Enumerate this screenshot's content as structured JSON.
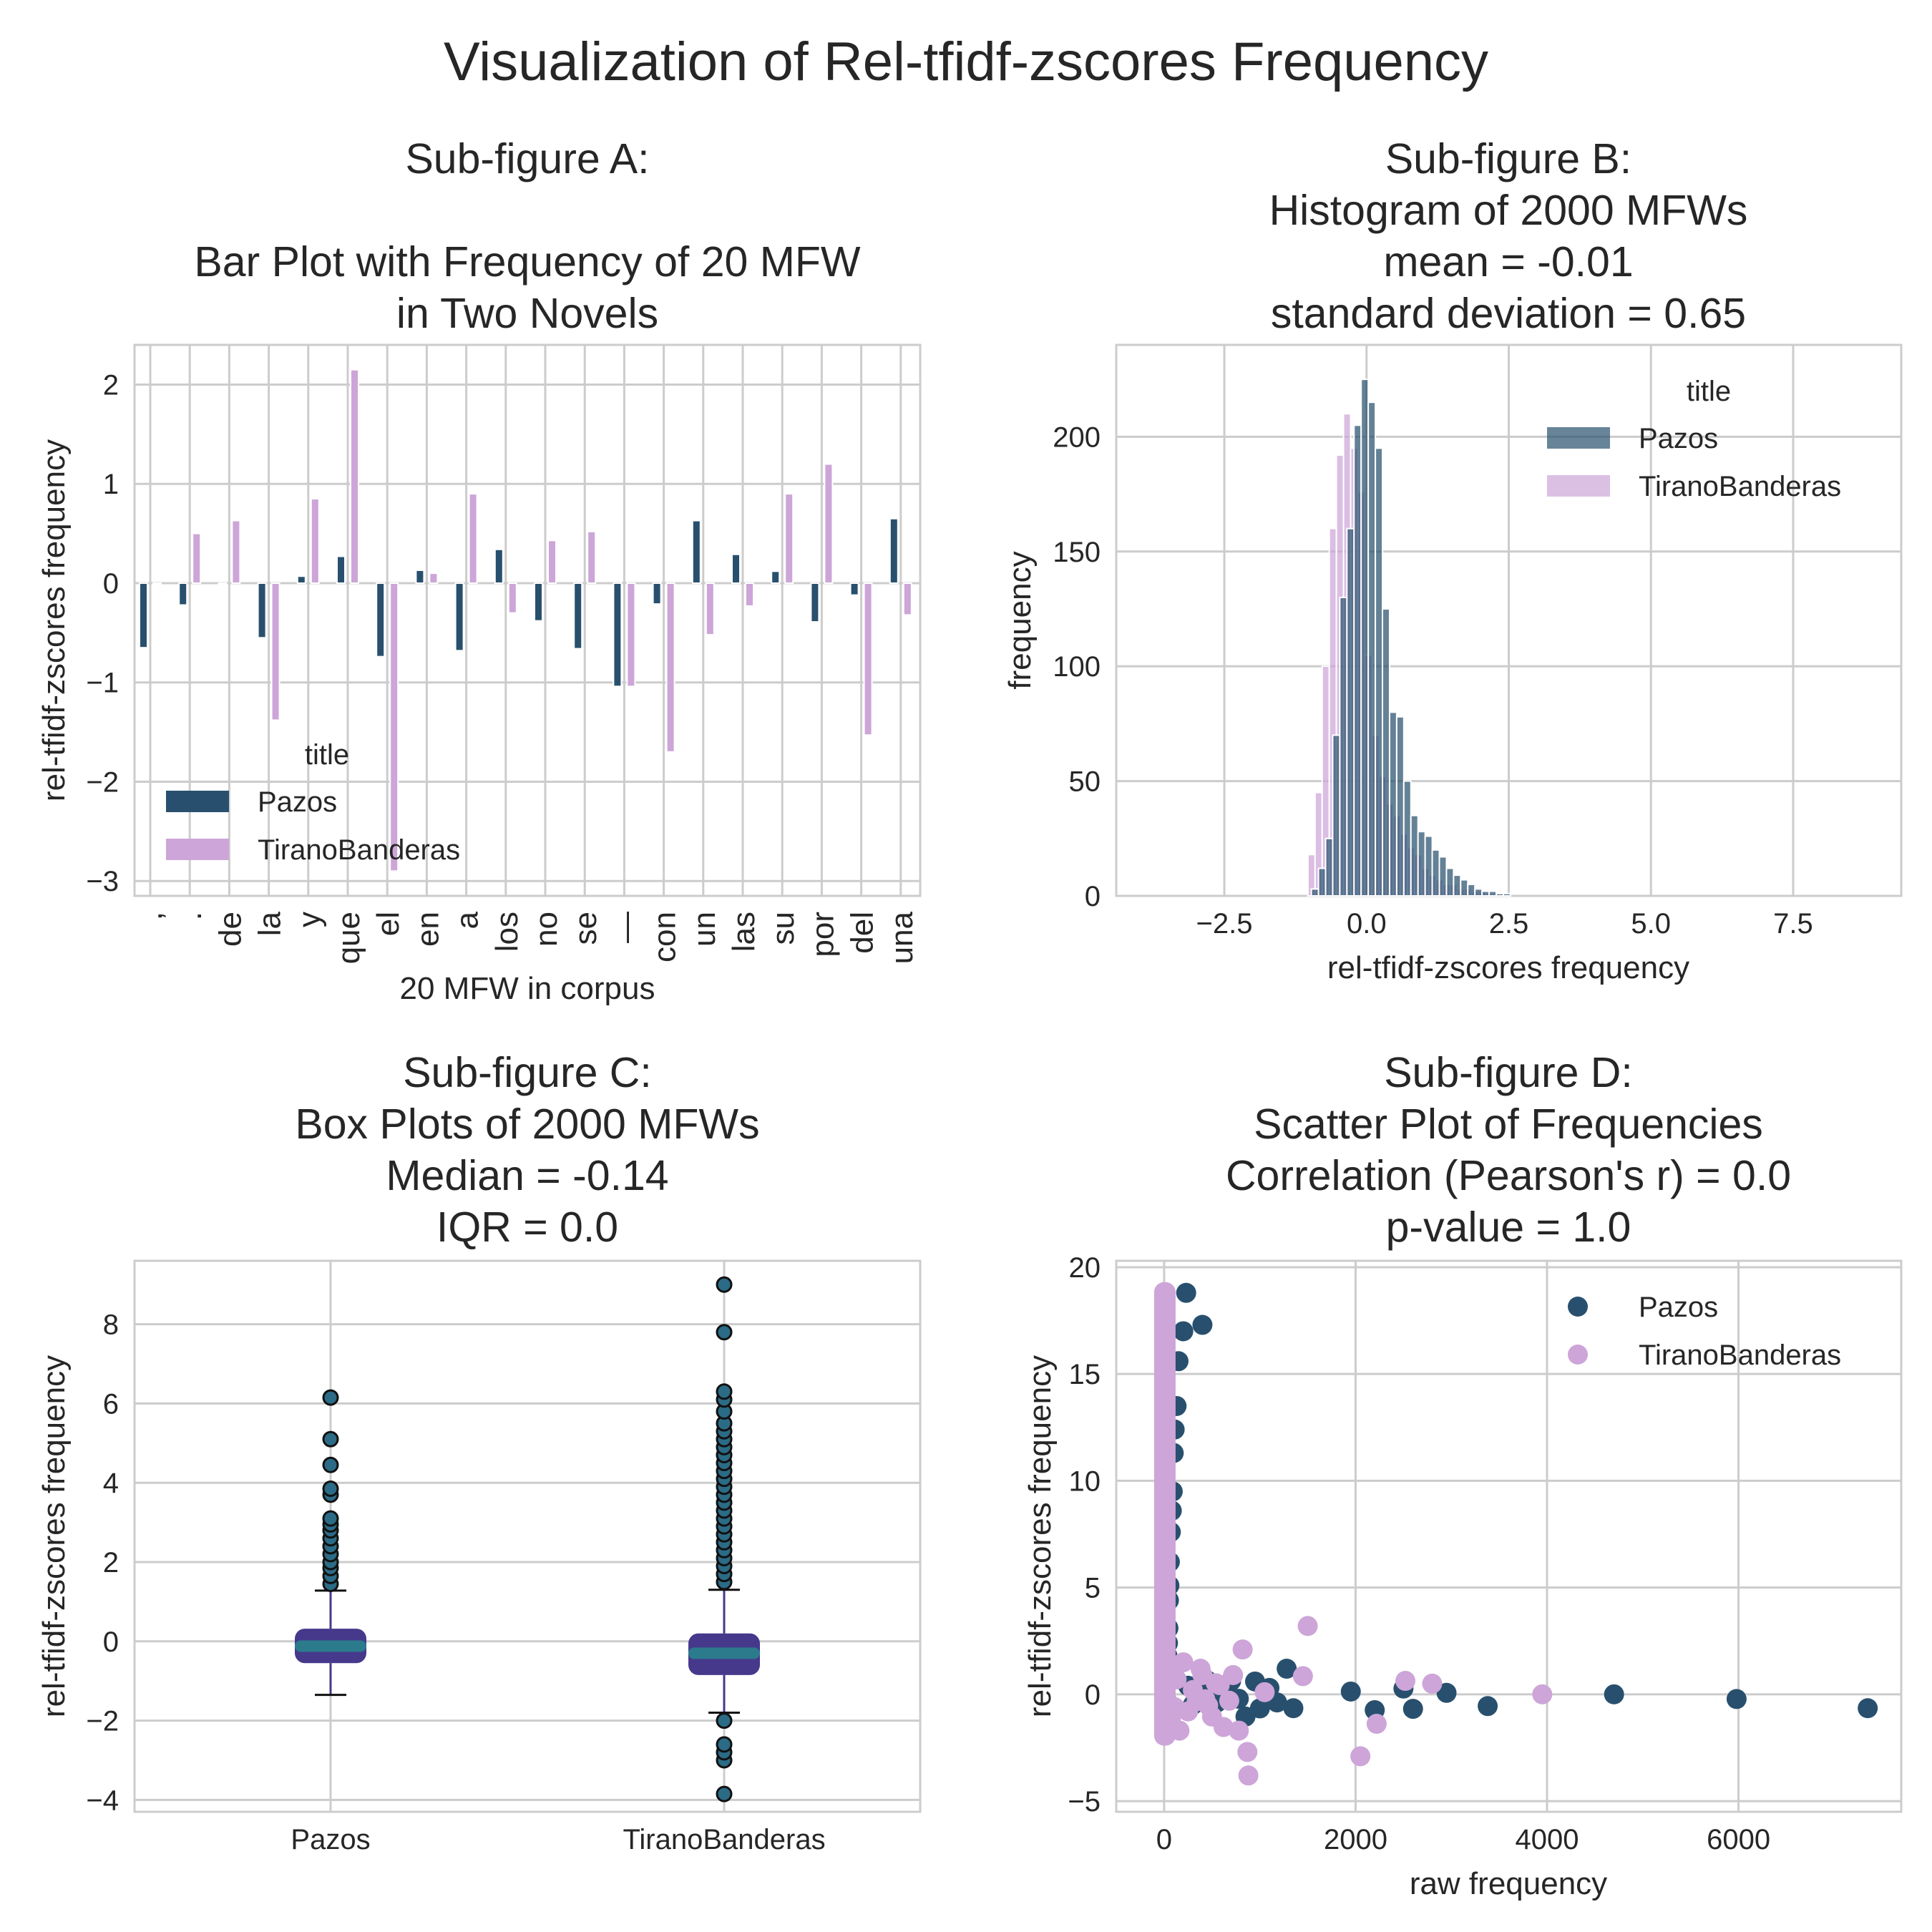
{
  "figure": {
    "title": "Visualization of Rel-tfidf-zscores Frequency"
  },
  "colors": {
    "pazos": "#28506e",
    "tirano": "#cda5d8",
    "box_fill": "#46398c",
    "box_median": "#2b7b8c",
    "flier_fill": "#2b6b86"
  },
  "chart_data": [
    {
      "panel": "A",
      "type": "bar",
      "title_lines": [
        "Sub-figure A:",
        "",
        "Bar Plot with Frequency of 20 MFW",
        "in Two Novels"
      ],
      "xlabel": "20 MFW in corpus",
      "ylabel": "rel-tfidf-zscores frequency",
      "ylim": [
        -3.15,
        2.4
      ],
      "yticks": [
        -3,
        -2,
        -1,
        0,
        1,
        2
      ],
      "ytick_labels": [
        "−3",
        "−2",
        "−1",
        "0",
        "1",
        "2"
      ],
      "categories": [
        ",",
        ".",
        "de",
        "la",
        "y",
        "que",
        "el",
        "en",
        "a",
        "los",
        "no",
        "se",
        "—",
        "con",
        "un",
        "las",
        "su",
        "por",
        "del",
        "una"
      ],
      "legend_title": "title",
      "legend_position": "lower-left",
      "series": [
        {
          "name": "Pazos",
          "values": [
            -0.65,
            -0.22,
            0.0,
            -0.55,
            0.07,
            0.27,
            -0.74,
            0.13,
            -0.68,
            0.34,
            -0.38,
            -0.66,
            -1.04,
            -0.21,
            0.63,
            0.29,
            0.12,
            -0.39,
            -0.12,
            0.65
          ]
        },
        {
          "name": "TiranoBanderas",
          "values": [
            0.0,
            0.5,
            0.63,
            -1.38,
            0.85,
            2.15,
            -2.9,
            0.1,
            0.9,
            -0.3,
            0.43,
            0.52,
            -1.04,
            -1.7,
            -0.52,
            -0.23,
            0.9,
            1.2,
            -1.53,
            -0.32
          ]
        }
      ]
    },
    {
      "panel": "B",
      "type": "histogram",
      "title_lines": [
        "Sub-figure B:",
        "Histogram of 2000 MFWs",
        "mean =  -0.01",
        "standard deviation = 0.65"
      ],
      "xlabel": "rel-tfidf-zscores frequency",
      "ylabel": "frequency",
      "xlim": [
        -4.4,
        9.4
      ],
      "ylim": [
        0,
        240
      ],
      "xticks": [
        -2.5,
        0.0,
        2.5,
        5.0,
        7.5
      ],
      "xtick_labels": [
        "−2.5",
        "0.0",
        "2.5",
        "5.0",
        "7.5"
      ],
      "yticks": [
        0,
        50,
        100,
        150,
        200
      ],
      "ytick_labels": [
        "0",
        "50",
        "100",
        "150",
        "200"
      ],
      "bin_start": -1.0,
      "bin_width": 0.125,
      "legend_title": "title",
      "legend_position": "top-right",
      "series": [
        {
          "name": "Pazos",
          "counts": [
            3,
            12,
            25,
            70,
            130,
            160,
            205,
            225,
            215,
            195,
            125,
            80,
            78,
            50,
            35,
            28,
            26,
            20,
            17,
            12,
            9,
            7,
            5,
            3,
            2,
            2,
            1,
            1
          ]
        },
        {
          "name": "TiranoBanderas",
          "counts": [
            18,
            45,
            100,
            160,
            192,
            210,
            195,
            176,
            105,
            70,
            52,
            40,
            35,
            27,
            21,
            18,
            12,
            9,
            7,
            5,
            5,
            3,
            3,
            2,
            2,
            1,
            1,
            1
          ]
        }
      ]
    },
    {
      "panel": "C",
      "type": "box",
      "title_lines": [
        "Sub-figure C:",
        "Box Plots of 2000 MFWs",
        "Median =  -0.14",
        "IQR = 0.0"
      ],
      "ylabel": "rel-tfidf-zscores frequency",
      "ylim": [
        -4.3,
        9.6
      ],
      "yticks": [
        -4,
        -2,
        0,
        2,
        4,
        6,
        8
      ],
      "ytick_labels": [
        "−4",
        "−2",
        "0",
        "2",
        "4",
        "6",
        "8"
      ],
      "categories": [
        "Pazos",
        "TiranoBanderas"
      ],
      "boxes": [
        {
          "name": "Pazos",
          "q1": -0.55,
          "median": -0.12,
          "q3": 0.32,
          "whisker_low": -1.35,
          "whisker_high": 1.28,
          "fliers": [
            1.45,
            1.65,
            1.85,
            2.0,
            2.2,
            2.4,
            2.6,
            2.8,
            2.95,
            3.1,
            3.7,
            3.85,
            4.45,
            5.1,
            6.15
          ]
        },
        {
          "name": "TiranoBanderas",
          "q1": -0.85,
          "median": -0.3,
          "q3": 0.2,
          "whisker_low": -1.8,
          "whisker_high": 1.3,
          "fliers": [
            -3.85,
            -3.0,
            -2.8,
            -2.6,
            -2.0,
            1.5,
            1.7,
            1.9,
            2.1,
            2.3,
            2.5,
            2.7,
            2.9,
            3.1,
            3.3,
            3.5,
            3.7,
            3.9,
            4.1,
            4.3,
            4.5,
            4.7,
            4.9,
            5.1,
            5.3,
            5.5,
            5.8,
            6.1,
            6.3,
            7.8,
            9.0
          ]
        }
      ]
    },
    {
      "panel": "D",
      "type": "scatter",
      "title_lines": [
        "Sub-figure D:",
        "Scatter Plot of Frequencies",
        "Correlation (Pearson's r) =  0.0",
        "p-value = 1.0"
      ],
      "xlabel": "raw frequency",
      "ylabel": "rel-tfidf-zscores frequency",
      "xlim": [
        -500,
        7700
      ],
      "ylim": [
        -5.5,
        20.3
      ],
      "xticks": [
        0,
        2000,
        4000,
        6000
      ],
      "xtick_labels": [
        "0",
        "2000",
        "4000",
        "6000"
      ],
      "yticks": [
        -5,
        0,
        5,
        10,
        15,
        20
      ],
      "ytick_labels": [
        "−5",
        "0",
        "5",
        "10",
        "15",
        "20"
      ],
      "legend_position": "top-right",
      "series": [
        {
          "name": "Pazos",
          "points": [
            [
              7350,
              -0.65
            ],
            [
              5980,
              -0.22
            ],
            [
              4700,
              0.0
            ],
            [
              3380,
              -0.55
            ],
            [
              2950,
              0.07
            ],
            [
              2600,
              -0.68
            ],
            [
              2500,
              0.27
            ],
            [
              2200,
              -0.74
            ],
            [
              1950,
              0.13
            ],
            [
              1350,
              -0.65
            ],
            [
              1280,
              1.2
            ],
            [
              1180,
              -0.38
            ],
            [
              1100,
              0.3
            ],
            [
              1000,
              -0.66
            ],
            [
              950,
              0.6
            ],
            [
              850,
              -1.04
            ],
            [
              780,
              -0.21
            ],
            [
              700,
              0.63
            ],
            [
              650,
              0.29
            ],
            [
              600,
              0.12
            ],
            [
              550,
              -0.39
            ],
            [
              500,
              -0.12
            ],
            [
              450,
              0.65
            ],
            [
              400,
              -0.3
            ],
            [
              350,
              0.2
            ],
            [
              300,
              -0.5
            ],
            [
              250,
              0.4
            ],
            [
              230,
              18.8
            ],
            [
              200,
              17.0
            ],
            [
              400,
              17.3
            ],
            [
              150,
              15.6
            ],
            [
              130,
              13.5
            ],
            [
              110,
              12.4
            ],
            [
              100,
              11.3
            ],
            [
              90,
              9.5
            ],
            [
              80,
              8.6
            ],
            [
              70,
              7.6
            ],
            [
              60,
              6.2
            ],
            [
              55,
              5.1
            ],
            [
              50,
              4.4
            ],
            [
              45,
              3.1
            ],
            [
              40,
              2.4
            ],
            [
              35,
              1.8
            ],
            [
              30,
              1.2
            ],
            [
              25,
              0.6
            ],
            [
              20,
              -0.2
            ],
            [
              15,
              -0.8
            ],
            [
              10,
              -1.4
            ]
          ]
        },
        {
          "name": "TiranoBanderas",
          "points": [
            [
              3950,
              0.0
            ],
            [
              2800,
              0.5
            ],
            [
              2520,
              0.63
            ],
            [
              2220,
              -1.38
            ],
            [
              2050,
              -2.9
            ],
            [
              1500,
              3.2
            ],
            [
              1450,
              0.85
            ],
            [
              1050,
              0.1
            ],
            [
              880,
              -3.8
            ],
            [
              870,
              -2.7
            ],
            [
              820,
              2.1
            ],
            [
              780,
              -1.7
            ],
            [
              720,
              0.9
            ],
            [
              680,
              -0.3
            ],
            [
              620,
              -1.53
            ],
            [
              580,
              0.43
            ],
            [
              540,
              0.52
            ],
            [
              500,
              -1.04
            ],
            [
              460,
              -0.52
            ],
            [
              430,
              -0.23
            ],
            [
              400,
              0.9
            ],
            [
              380,
              1.2
            ],
            [
              340,
              -0.32
            ],
            [
              300,
              0.2
            ],
            [
              250,
              -0.8
            ],
            [
              200,
              1.5
            ],
            [
              160,
              -1.7
            ],
            [
              130,
              0.7
            ],
            [
              110,
              -0.6
            ],
            [
              90,
              1.0
            ],
            [
              70,
              -1.2
            ]
          ]
        }
      ]
    }
  ]
}
